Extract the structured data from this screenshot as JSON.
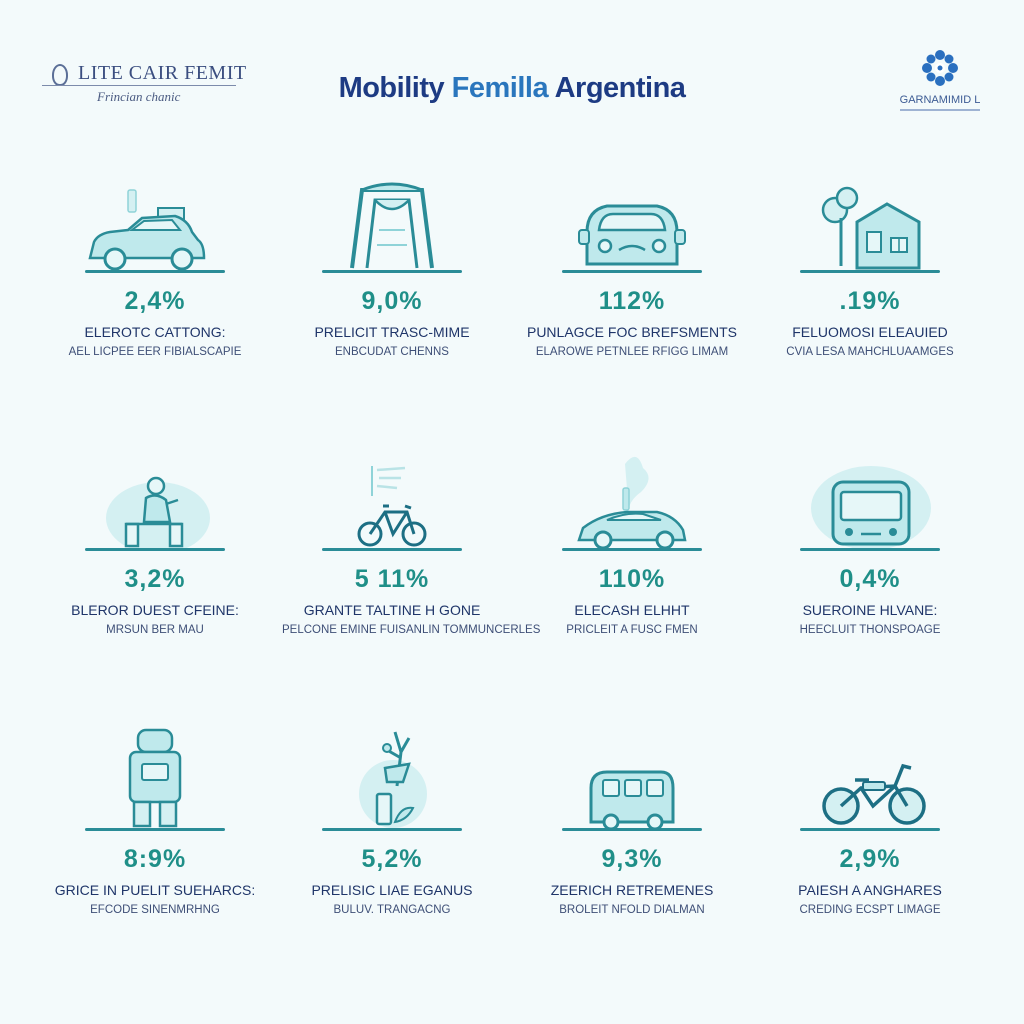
{
  "header": {
    "logo_left": {
      "name": "LITE CAIR FEMIT",
      "tagline": "Frincian chanic"
    },
    "title": {
      "main": "Mobility ",
      "accent": "Femilla",
      "rest": " Argentina"
    },
    "logo_right": {
      "caption": "GARNAMIMID L"
    }
  },
  "colors": {
    "accent_teal": "#1f8f88",
    "icon_stroke": "#2a8c97",
    "icon_fill": "#bfe9ec",
    "title_navy": "#1d3b83",
    "title_accent": "#2a76bd",
    "background": "#f3fafb"
  },
  "stats": [
    {
      "icon": "car-icon",
      "value": "2,4%",
      "label": "ELEROTC CATTONG:",
      "sublabel": "AEL LICPEE EER FIBIALSCAPIE"
    },
    {
      "icon": "gate-arch-icon",
      "value": "9,0%",
      "label": "PRELICIT TRASC-MIME",
      "sublabel": "ENBCUDAT CHENNS"
    },
    {
      "icon": "car-front-icon",
      "value": "112%",
      "label": "PUNLAGCE FOC BREFSMENTS",
      "sublabel": "ELAROWE PETNLEE RFIGG LIMAM"
    },
    {
      "icon": "house-tree-icon",
      "value": ".19%",
      "label": "FELUOMOSI ELEAUIED",
      "sublabel": "CVIA LESA MAHCHLUAAMGES"
    },
    {
      "icon": "person-bench-icon",
      "value": "3,2%",
      "label": "BLEROR DUEST CFEINE:",
      "sublabel": "MRSUN BER MAU"
    },
    {
      "icon": "bicycle-icon",
      "value": "5 11%",
      "label": "GRANTE TALTINE H GONE",
      "sublabel": "PELCONE EMINE FUISANLIN TOMMUNCERLES"
    },
    {
      "icon": "sports-car-icon",
      "value": "110%",
      "label": "ELECASH ELHHT",
      "sublabel": "PRICLEIT A FUSC FMEN"
    },
    {
      "icon": "bus-icon",
      "value": "0,4%",
      "label": "SUEROINE HLVANE:",
      "sublabel": "HEECLUIT THONSPOAGE"
    },
    {
      "icon": "kiosk-robot-icon",
      "value": "8:9%",
      "label": "GRICE IN PUELIT SUEHARCS:",
      "sublabel": "EFCODE SINENMRHNG"
    },
    {
      "icon": "plant-globe-icon",
      "value": "5,2%",
      "label": "PRELISIC LIAE EGANUS",
      "sublabel": "BULUV. TRANGACNG"
    },
    {
      "icon": "camper-van-icon",
      "value": "9,3%",
      "label": "ZEERICH RETREMENES",
      "sublabel": "BROLEIT NFOLD DIALMAN"
    },
    {
      "icon": "e-bike-icon",
      "value": "2,9%",
      "label": "PAIESH A ANGHARES",
      "sublabel": "CREDING ECSPT LIMAGE"
    }
  ]
}
